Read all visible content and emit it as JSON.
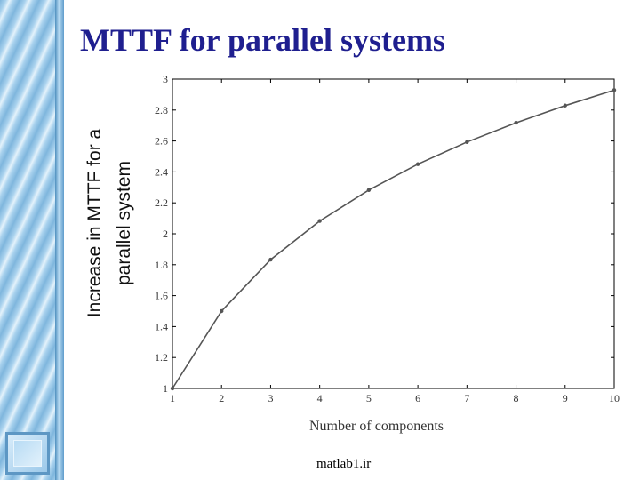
{
  "slide": {
    "title": "MTTF for parallel systems",
    "footer": "matlab1.ir"
  },
  "theme": {
    "title_color": "#1f1f8f",
    "line_color": "#555555",
    "frame_color": "#000000"
  },
  "chart_data": {
    "type": "line",
    "xlabel": "Number of components",
    "ylabel": [
      "Increase in MTTF for a",
      "parallel system"
    ],
    "xlim": [
      1,
      10
    ],
    "ylim": [
      1,
      3
    ],
    "xticks": [
      1,
      2,
      3,
      4,
      5,
      6,
      7,
      8,
      9,
      10
    ],
    "yticks": [
      1,
      1.2,
      1.4,
      1.6,
      1.8,
      2,
      2.2,
      2.4,
      2.6,
      2.8,
      3
    ],
    "ytick_labels": [
      "1",
      "1.2",
      "1.4",
      "1.6",
      "1.8",
      "2",
      "2.2",
      "2.4",
      "2.6",
      "2.8",
      "3"
    ],
    "grid": false,
    "series": [
      {
        "x": [
          1,
          2,
          3,
          4,
          5,
          6,
          7,
          8,
          9,
          10
        ],
        "values": [
          1.0,
          1.5,
          1.833,
          2.083,
          2.283,
          2.45,
          2.593,
          2.718,
          2.829,
          2.929
        ]
      }
    ]
  }
}
